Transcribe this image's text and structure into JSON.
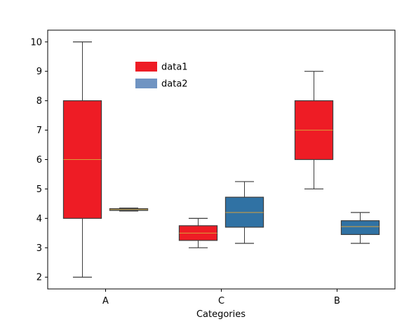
{
  "chart_data": {
    "type": "box",
    "title": "",
    "xlabel": "Categories",
    "ylabel": "",
    "categories": [
      "A",
      "C",
      "B"
    ],
    "yticks": [
      2,
      3,
      4,
      5,
      6,
      7,
      8,
      9,
      10
    ],
    "ylim": [
      1.6,
      10.4
    ],
    "grid": false,
    "legend": {
      "placement": "upper-left-inside"
    },
    "series": [
      {
        "name": "data1",
        "color": "#ee1c25",
        "boxes": [
          {
            "category": "A",
            "whisker_low": 2.0,
            "q1": 4.0,
            "median": 6.0,
            "q3": 8.0,
            "whisker_high": 10.0
          },
          {
            "category": "C",
            "whisker_low": 3.0,
            "q1": 3.25,
            "median": 3.5,
            "q3": 3.75,
            "whisker_high": 4.0
          },
          {
            "category": "B",
            "whisker_low": 5.0,
            "q1": 6.0,
            "median": 7.0,
            "q3": 8.0,
            "whisker_high": 9.0
          }
        ]
      },
      {
        "name": "data2",
        "color": "#7094c2",
        "boxes": [
          {
            "category": "A",
            "whisker_low": 4.25,
            "q1": 4.27,
            "median": 4.3,
            "q3": 4.33,
            "whisker_high": 4.35
          },
          {
            "category": "C",
            "whisker_low": 3.15,
            "q1": 3.7,
            "median": 4.2,
            "q3": 4.72,
            "whisker_high": 5.25
          },
          {
            "category": "B",
            "whisker_low": 3.15,
            "q1": 3.45,
            "median": 3.72,
            "q3": 3.92,
            "whisker_high": 4.2
          }
        ]
      }
    ],
    "box_fill_overrides": {
      "data2": "#3072a4"
    },
    "median_color": "#d8a03a"
  }
}
